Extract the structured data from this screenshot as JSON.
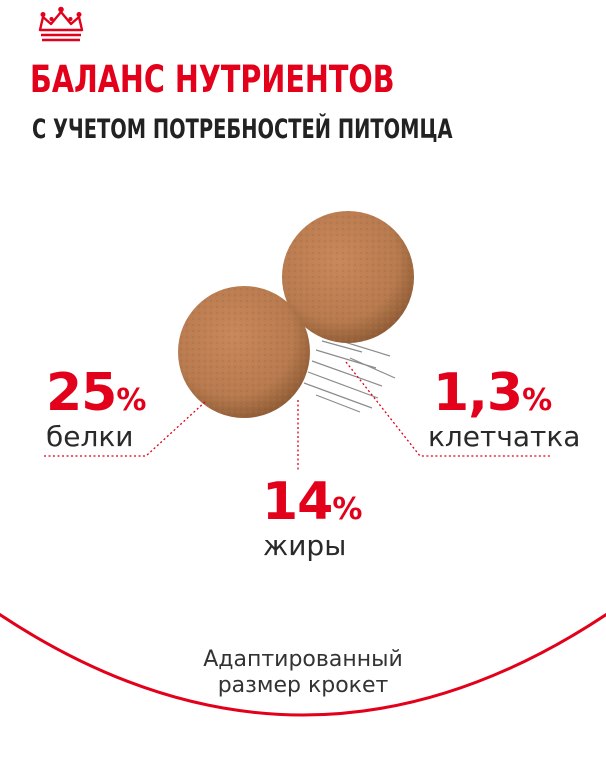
{
  "brand": {
    "logo": "royal-crown-icon",
    "accent_color": "#e2001a"
  },
  "heading": {
    "title": "БАЛАНС НУТРИЕНТОВ",
    "subtitle": "С УЧЕТОМ ПОТРЕБНОСТЕЙ ПИТОМЦА"
  },
  "nutrients": [
    {
      "value": "25",
      "unit": "%",
      "label": "белки"
    },
    {
      "value": "14",
      "unit": "%",
      "label": "жиры"
    },
    {
      "value": "1,3",
      "unit": "%",
      "label": "клетчатка"
    }
  ],
  "footer": {
    "line1": "Адаптированный",
    "line2": "размер крокет"
  }
}
